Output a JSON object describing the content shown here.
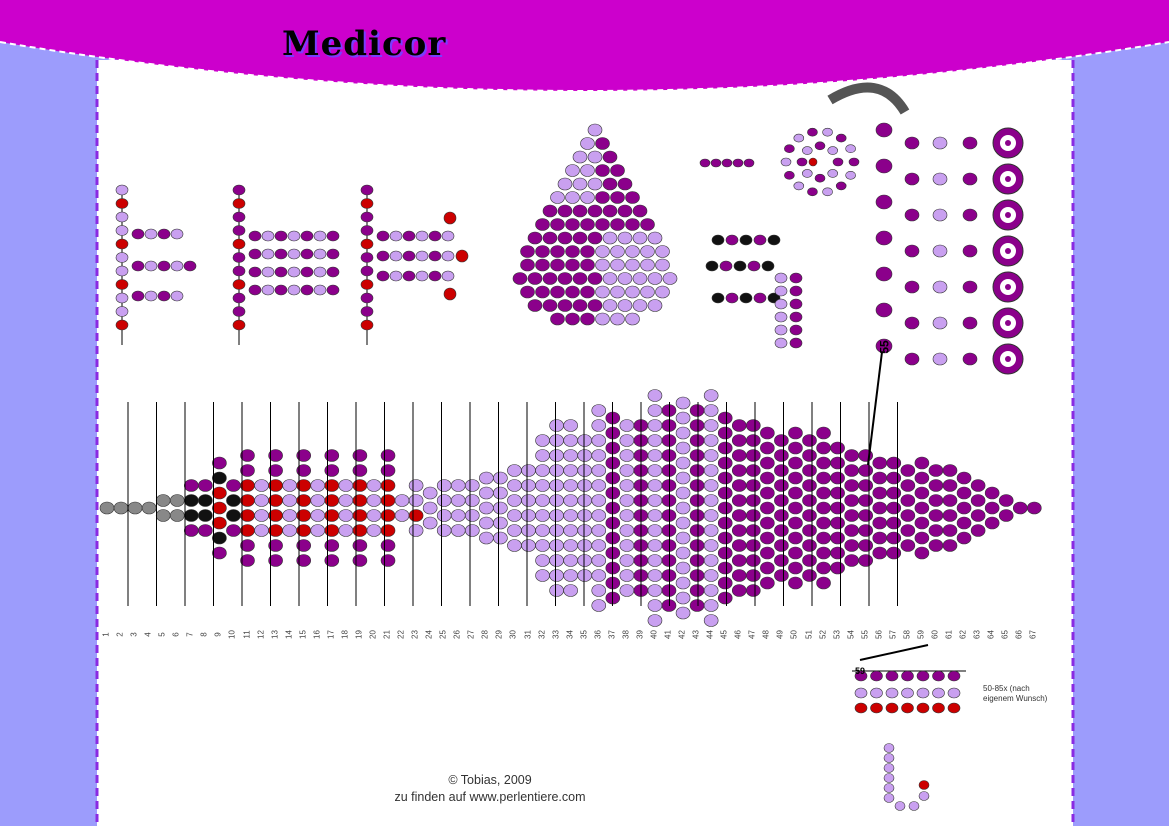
{
  "title": "Medicor",
  "copyright": {
    "line1": "© Tobias, 2009",
    "line2": "zu finden auf www.perlentiere.com"
  },
  "colors": {
    "page_bg": "#9c9cfc",
    "header": "#cc00cc",
    "border_dash": "#8a2be2",
    "bead_dark": "#8b008b",
    "bead_light": "#c9a0f0",
    "bead_red": "#cc0000",
    "bead_grey": "#888888",
    "bead_black": "#111111"
  },
  "bottom_scale": [
    "1",
    "2",
    "3",
    "4",
    "5",
    "6",
    "7",
    "8",
    "9",
    "10",
    "11",
    "12",
    "13",
    "14",
    "15",
    "16",
    "17",
    "18",
    "19",
    "20",
    "21",
    "22",
    "23",
    "24",
    "25",
    "26",
    "27",
    "28",
    "29",
    "30",
    "31",
    "32",
    "33",
    "34",
    "35",
    "36",
    "37",
    "38",
    "39",
    "40",
    "41",
    "42",
    "43",
    "44",
    "45",
    "46",
    "47",
    "48",
    "49",
    "50",
    "51",
    "52",
    "53",
    "54",
    "55",
    "56",
    "57",
    "58",
    "59",
    "60",
    "61",
    "62",
    "63",
    "64",
    "65",
    "66",
    "67"
  ],
  "labels": {
    "n55": "55",
    "n59": "59",
    "tail_note": "50-85x (nach eigenem Wunsch)"
  }
}
